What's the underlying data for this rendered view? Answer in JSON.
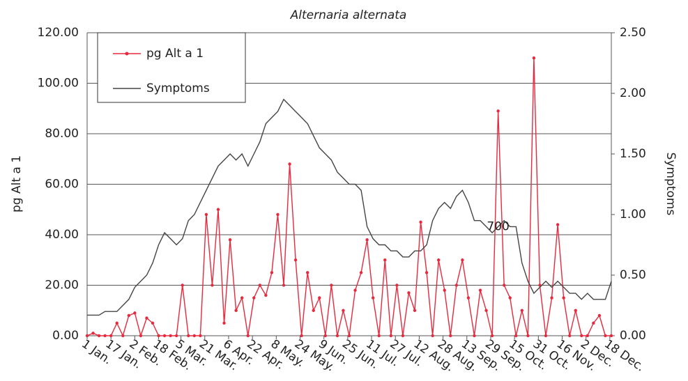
{
  "chart_data": {
    "type": "line",
    "title": "Alternaria alternata",
    "y_label": "pg Alt a 1",
    "y2_label": "Symptoms",
    "annotation": {
      "text": "700",
      "x": 277,
      "y": 0.9,
      "axis": "y2"
    },
    "x": [
      1,
      5,
      9,
      13,
      17,
      21,
      25,
      29,
      33,
      37,
      41,
      45,
      49,
      53,
      57,
      61,
      65,
      69,
      73,
      77,
      81,
      85,
      89,
      93,
      97,
      101,
      105,
      109,
      113,
      117,
      121,
      125,
      129,
      133,
      137,
      141,
      145,
      149,
      153,
      157,
      161,
      165,
      169,
      173,
      177,
      181,
      185,
      189,
      193,
      197,
      201,
      205,
      209,
      213,
      217,
      221,
      225,
      229,
      233,
      237,
      241,
      245,
      249,
      253,
      257,
      261,
      265,
      269,
      273,
      277,
      281,
      285,
      289,
      293,
      297,
      301,
      305,
      309,
      313,
      317,
      321,
      325,
      329,
      333,
      337,
      341,
      345,
      349,
      353
    ],
    "xlim": [
      1,
      353
    ],
    "xticks": [
      {
        "value": 1,
        "label": "1 Jan."
      },
      {
        "value": 17,
        "label": "17 Jan."
      },
      {
        "value": 33,
        "label": "2 Feb."
      },
      {
        "value": 49,
        "label": "18 Feb."
      },
      {
        "value": 64,
        "label": "5 Mar."
      },
      {
        "value": 80,
        "label": "21 Mar."
      },
      {
        "value": 96,
        "label": "6 Apr."
      },
      {
        "value": 112,
        "label": "22 Apr."
      },
      {
        "value": 128,
        "label": "8 May."
      },
      {
        "value": 144,
        "label": "24 May."
      },
      {
        "value": 160,
        "label": "9 Jun."
      },
      {
        "value": 176,
        "label": "25 Jun."
      },
      {
        "value": 192,
        "label": "11 Jul."
      },
      {
        "value": 208,
        "label": "27 Jul."
      },
      {
        "value": 224,
        "label": "12 Aug."
      },
      {
        "value": 240,
        "label": "28 Aug."
      },
      {
        "value": 256,
        "label": "13 Sep."
      },
      {
        "value": 272,
        "label": "29 Sep."
      },
      {
        "value": 288,
        "label": "15 Oct."
      },
      {
        "value": 304,
        "label": "31 Oct."
      },
      {
        "value": 320,
        "label": "16 Nov."
      },
      {
        "value": 336,
        "label": "2 Dec."
      },
      {
        "value": 352,
        "label": "18 Dec."
      }
    ],
    "ylim": [
      0,
      120
    ],
    "yticks": [
      {
        "value": 0,
        "label": "0.00"
      },
      {
        "value": 20,
        "label": "20.00"
      },
      {
        "value": 40,
        "label": "40.00"
      },
      {
        "value": 60,
        "label": "60.00"
      },
      {
        "value": 80,
        "label": "80.00"
      },
      {
        "value": 100,
        "label": "100.00"
      },
      {
        "value": 120,
        "label": "120.00"
      }
    ],
    "y2lim": [
      0,
      2.5
    ],
    "y2ticks": [
      {
        "value": 0,
        "label": "0.00"
      },
      {
        "value": 0.5,
        "label": "0.50"
      },
      {
        "value": 1,
        "label": "1.00"
      },
      {
        "value": 1.5,
        "label": "1.50"
      },
      {
        "value": 2,
        "label": "2.00"
      },
      {
        "value": 2.5,
        "label": "2.50"
      }
    ],
    "grid": true,
    "legend": "upper left",
    "series": [
      {
        "name": "pg Alt a 1",
        "color": "#e8283c",
        "markers": true,
        "values": [
          0,
          1,
          0,
          0,
          0,
          5,
          0,
          8,
          9,
          0,
          7,
          5,
          0,
          0,
          0,
          0,
          20,
          0,
          0,
          0,
          48,
          20,
          50,
          5,
          38,
          10,
          15,
          0,
          15,
          20,
          16,
          25,
          48,
          20,
          68,
          30,
          0,
          25,
          10,
          15,
          0,
          20,
          0,
          10,
          0,
          18,
          25,
          38,
          15,
          0,
          30,
          0,
          20,
          0,
          17,
          10,
          45,
          25,
          0,
          30,
          18,
          0,
          20,
          30,
          15,
          0,
          18,
          10,
          0,
          89,
          20,
          15,
          0,
          10,
          0,
          110,
          20,
          0,
          15,
          44,
          15,
          0,
          10,
          0,
          0,
          5,
          8,
          0,
          0
        ]
      },
      {
        "name": "Symptoms",
        "color": "#444444",
        "axis": "y2",
        "markers": false,
        "values": [
          0.17,
          0.17,
          0.17,
          0.2,
          0.2,
          0.2,
          0.25,
          0.3,
          0.4,
          0.45,
          0.5,
          0.6,
          0.75,
          0.85,
          0.8,
          0.75,
          0.8,
          0.95,
          1.0,
          1.1,
          1.2,
          1.3,
          1.4,
          1.45,
          1.5,
          1.45,
          1.5,
          1.4,
          1.5,
          1.6,
          1.75,
          1.8,
          1.85,
          1.95,
          1.9,
          1.85,
          1.8,
          1.75,
          1.65,
          1.55,
          1.5,
          1.45,
          1.35,
          1.3,
          1.25,
          1.25,
          1.2,
          0.9,
          0.8,
          0.75,
          0.75,
          0.7,
          0.7,
          0.65,
          0.65,
          0.7,
          0.7,
          0.75,
          0.95,
          1.05,
          1.1,
          1.05,
          1.15,
          1.2,
          1.1,
          0.95,
          0.95,
          0.9,
          0.85,
          0.9,
          0.95,
          0.9,
          0.9,
          0.6,
          0.45,
          0.35,
          0.4,
          0.45,
          0.4,
          0.45,
          0.4,
          0.35,
          0.35,
          0.3,
          0.35,
          0.3,
          0.3,
          0.3,
          0.45
        ]
      }
    ]
  }
}
